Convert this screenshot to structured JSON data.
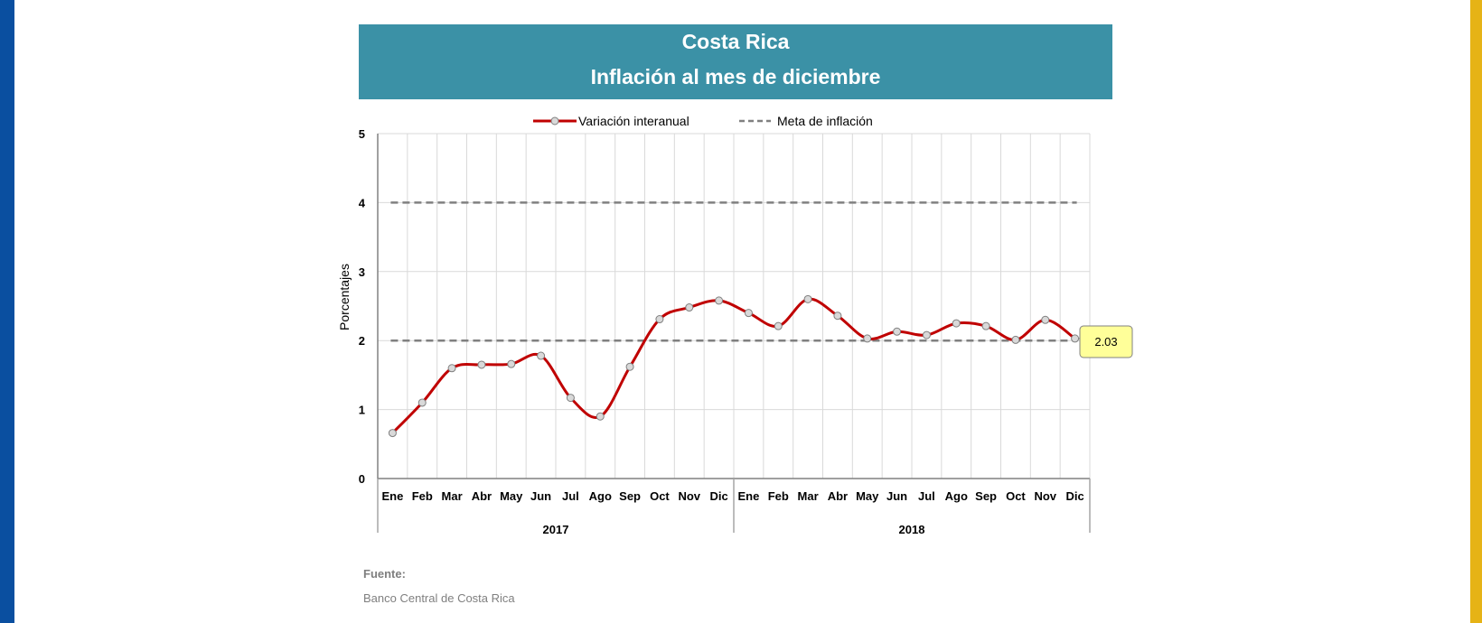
{
  "header": {
    "title": "Costa Rica",
    "subtitle": "Inflación al mes de diciembre"
  },
  "colors": {
    "accent": "#3b91a6",
    "line": "#c00000",
    "target": "#808080",
    "callout": "#ffff99"
  },
  "chart_data": {
    "type": "line",
    "ylabel": "Porcentajes",
    "ylim": [
      0,
      5
    ],
    "yticks": [
      "0",
      "1",
      "2",
      "3",
      "4",
      "5"
    ],
    "grid": true,
    "legend_position": "top-center",
    "categories": [
      "Ene",
      "Feb",
      "Mar",
      "Abr",
      "May",
      "Jun",
      "Jul",
      "Ago",
      "Sep",
      "Oct",
      "Nov",
      "Dic",
      "Ene",
      "Feb",
      "Mar",
      "Abr",
      "May",
      "Jun",
      "Jul",
      "Ago",
      "Sep",
      "Oct",
      "Nov",
      "Dic"
    ],
    "year_groups": [
      {
        "label": "2017",
        "count": 12
      },
      {
        "label": "2018",
        "count": 12
      }
    ],
    "series": [
      {
        "name": "Variación interanual",
        "values": [
          0.66,
          1.1,
          1.6,
          1.65,
          1.66,
          1.78,
          1.17,
          0.9,
          1.62,
          2.31,
          2.48,
          2.58,
          2.4,
          2.21,
          2.6,
          2.36,
          2.03,
          2.13,
          2.08,
          2.25,
          2.21,
          2.01,
          2.3,
          2.03
        ]
      },
      {
        "name": "Meta de inflación",
        "style": "dashed",
        "bands": [
          2,
          4
        ]
      }
    ],
    "annotations": [
      {
        "text": "2.03"
      }
    ]
  },
  "footer": {
    "label": "Fuente:",
    "source": "Banco Central de Costa Rica"
  }
}
